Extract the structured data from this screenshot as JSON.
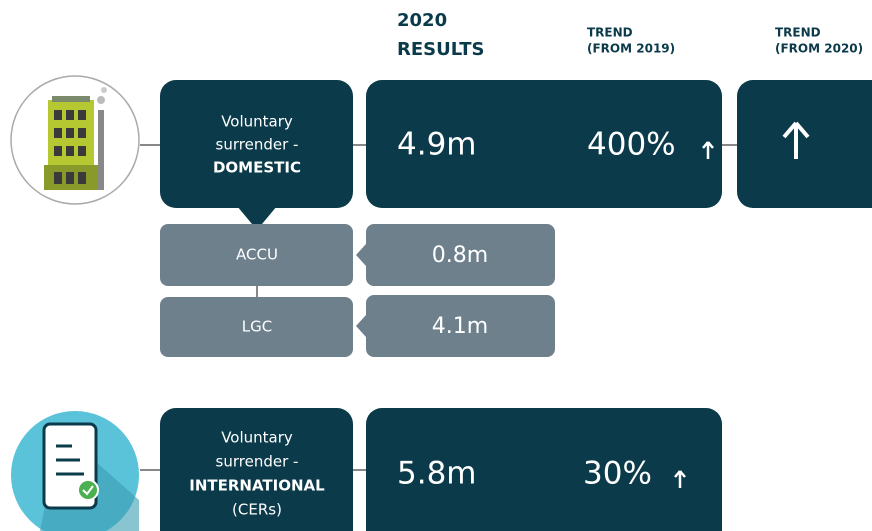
{
  "headers": [
    {
      "lines": [
        "2020",
        "RESULTS"
      ]
    },
    {
      "lines": [
        "TREND",
        "(FROM 2019)"
      ]
    },
    {
      "lines": [
        "TREND",
        "(FROM 2020)"
      ]
    }
  ],
  "rows": [
    {
      "label_lines": [
        "Voluntary",
        "surrender -",
        "DOMESTIC"
      ],
      "result": "4.9m",
      "trend_2019": "400%",
      "sub_rows": [
        {
          "label": "ACCU",
          "result": "0.8m"
        },
        {
          "label": "LGC",
          "result": "4.1m"
        }
      ]
    },
    {
      "label_lines": [
        "Voluntary",
        "surrender -",
        "INTERNATIONAL",
        "(CERs)"
      ],
      "result": "5.8m",
      "trend_2019": "30%"
    }
  ]
}
